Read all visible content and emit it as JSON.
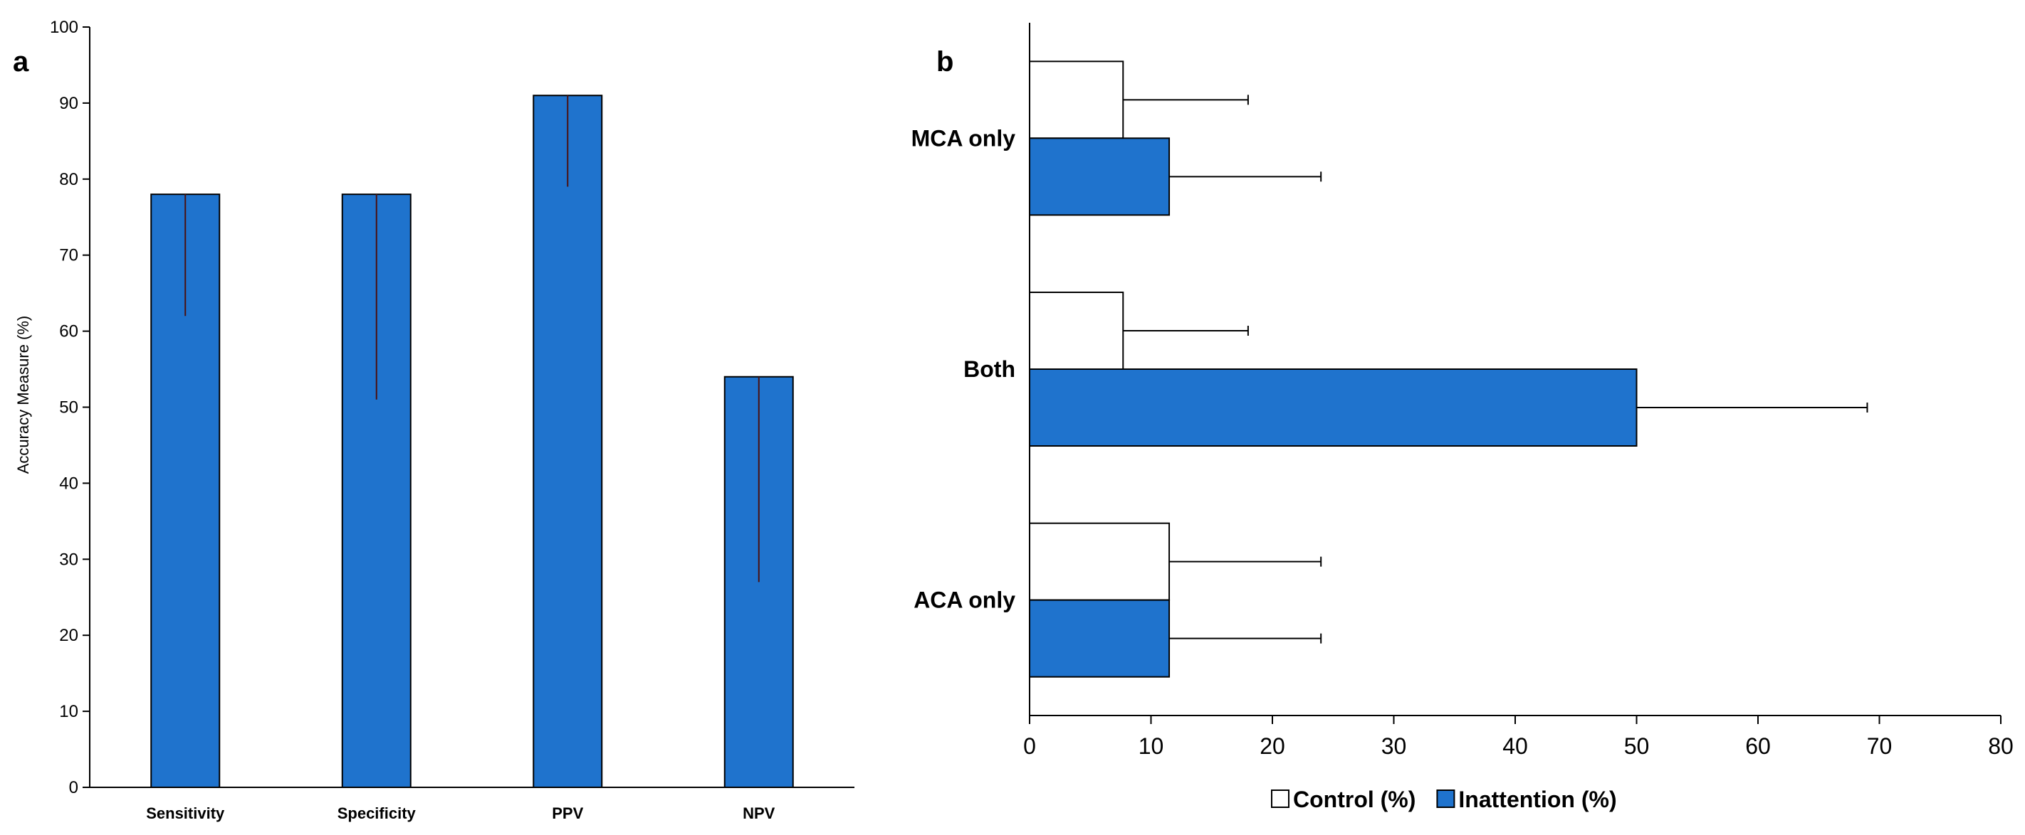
{
  "chart_data": [
    {
      "panel_label": "a",
      "type": "bar",
      "orientation": "vertical",
      "categories": [
        "Sensitivity",
        "Specificity",
        "PPV",
        "NPV"
      ],
      "values": [
        78,
        78,
        91,
        54
      ],
      "error_lower": [
        62,
        51,
        79,
        27
      ],
      "ylabel": "Accuracy Measure (%)",
      "ylim": [
        0,
        100
      ],
      "yticks": [
        0,
        10,
        20,
        30,
        40,
        50,
        60,
        70,
        80,
        90,
        100
      ],
      "bar_color": "#1f73cd",
      "grid": false
    },
    {
      "panel_label": "b",
      "type": "bar",
      "orientation": "horizontal",
      "categories": [
        "MCA only",
        "Both",
        "ACA only"
      ],
      "series": [
        {
          "name": "Control (%)",
          "values": [
            7.7,
            7.7,
            11.5
          ],
          "error_upper": [
            18,
            18,
            24
          ],
          "color": "#ffffff"
        },
        {
          "name": "Inattention (%)",
          "values": [
            11.5,
            50,
            11.5
          ],
          "error_upper": [
            24,
            69,
            24
          ],
          "color": "#1f73cd"
        }
      ],
      "xlim": [
        0,
        80
      ],
      "xticks": [
        0,
        10,
        20,
        30,
        40,
        50,
        60,
        70,
        80
      ],
      "legend_position": "bottom",
      "grid": false
    }
  ]
}
